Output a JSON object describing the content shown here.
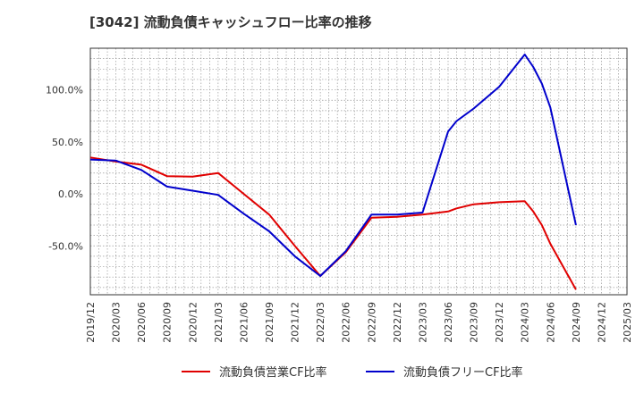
{
  "chart_data": {
    "type": "line",
    "title": "[3042]  流動負債キャッシュフロー比率の推移",
    "x": [
      "2019/12",
      "2020/03",
      "2020/06",
      "2020/09",
      "2020/12",
      "2021/03",
      "2021/06",
      "2021/09",
      "2021/12",
      "2022/03",
      "2022/06",
      "2022/09",
      "2022/12",
      "2023/03",
      "2023/06",
      "2023/09",
      "2023/12",
      "2024/03",
      "2024/06",
      "2024/09",
      "2024/12",
      "2025/03"
    ],
    "xlabel": "",
    "ylabel": "",
    "ylim": [
      -97,
      140
    ],
    "yticks": [
      100,
      50,
      0,
      -50
    ],
    "ytick_labels": [
      "100.0%",
      "50.0%",
      "0.0%",
      "-50.0%"
    ],
    "grid": true,
    "legend_position": "bottom-center",
    "series": [
      {
        "name": "流動負債営業CF比率",
        "color": "#e00000",
        "points": [
          [
            "2019/12",
            35
          ],
          [
            "2020/03",
            31
          ],
          [
            "2020/06",
            28
          ],
          [
            "2020/09",
            17
          ],
          [
            "2020/12",
            16.5
          ],
          [
            "2021/03",
            20
          ],
          [
            "2021/06",
            0
          ],
          [
            "2021/09",
            -20
          ],
          [
            "2021/12",
            -50
          ],
          [
            "2022/03",
            -79
          ],
          [
            "2022/06",
            -56
          ],
          [
            "2022/09",
            -23
          ],
          [
            "2022/12",
            -22
          ],
          [
            "2023/03",
            -20
          ],
          [
            "2023/06",
            -17
          ],
          [
            "2023/07",
            -14
          ],
          [
            "2023/09",
            -10
          ],
          [
            "2023/12",
            -8
          ],
          [
            "2024/03",
            -7
          ],
          [
            "2024/04",
            -17
          ],
          [
            "2024/05",
            -30
          ],
          [
            "2024/06",
            -48
          ],
          [
            "2024/09",
            -92
          ]
        ]
      },
      {
        "name": "流動負債フリーCF比率",
        "color": "#0000cc",
        "points": [
          [
            "2019/12",
            33
          ],
          [
            "2020/03",
            32
          ],
          [
            "2020/06",
            23
          ],
          [
            "2020/09",
            7
          ],
          [
            "2020/12",
            3
          ],
          [
            "2021/03",
            -1
          ],
          [
            "2021/06",
            -19
          ],
          [
            "2021/09",
            -36
          ],
          [
            "2021/12",
            -60
          ],
          [
            "2022/03",
            -79
          ],
          [
            "2022/06",
            -55
          ],
          [
            "2022/09",
            -20
          ],
          [
            "2022/12",
            -20
          ],
          [
            "2023/03",
            -18
          ],
          [
            "2023/06",
            60
          ],
          [
            "2023/07",
            70
          ],
          [
            "2023/09",
            82
          ],
          [
            "2023/12",
            103
          ],
          [
            "2024/03",
            134
          ],
          [
            "2024/04",
            122
          ],
          [
            "2024/05",
            106
          ],
          [
            "2024/06",
            83
          ],
          [
            "2024/09",
            -30
          ]
        ]
      }
    ]
  }
}
